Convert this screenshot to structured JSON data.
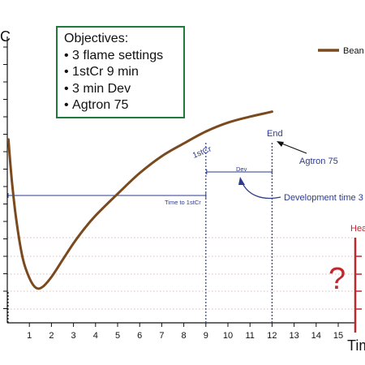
{
  "chart_data": {
    "type": "line",
    "title": "",
    "ylabel": "C",
    "xlabel": "Tim",
    "xlim": [
      0,
      16
    ],
    "x_ticks": [
      1,
      2,
      3,
      4,
      5,
      6,
      7,
      8,
      9,
      10,
      11,
      12,
      13,
      14,
      15
    ],
    "grid": "dotted horizontal",
    "series": [
      {
        "name": "Bean",
        "color": "#7a4a1e",
        "x": [
          0.05,
          0.2,
          0.4,
          0.7,
          1.0,
          1.3,
          1.6,
          2.0,
          2.5,
          3.0,
          3.5,
          4.0,
          5.0,
          6.0,
          7.0,
          8.0,
          9.0,
          10.0,
          11.0,
          12.0
        ],
        "y": [
          155,
          115,
          75,
          35,
          15,
          5,
          6,
          16,
          33,
          50,
          65,
          78,
          100,
          121,
          138,
          151,
          163,
          172,
          178,
          183
        ]
      }
    ],
    "legend": {
      "position": "top-right",
      "label": "Bean"
    },
    "markers": [
      {
        "x": 9,
        "label": "1stCr"
      },
      {
        "x": 12,
        "label": "End"
      }
    ],
    "spans": [
      {
        "from": 0,
        "to": 9,
        "label": "Time to 1stCr"
      },
      {
        "from": 9,
        "to": 12,
        "label": "Dev"
      }
    ],
    "annotations": [
      {
        "text": "Agtron 75",
        "target_x": 12
      },
      {
        "text": "Development time 3",
        "target_x": 10.5
      }
    ],
    "side_label": "Hea",
    "question_mark": "?",
    "colors": {
      "curve": "#7a4a1e",
      "annotation": "#2b3b8f",
      "heat": "#c1272d",
      "grid": "#e0a0a0",
      "objectives_border": "#1e7b3a"
    }
  },
  "objectives": {
    "title": "Objectives:",
    "items": [
      "3 flame settings",
      "1stCr 9 min",
      "3 min Dev",
      "Agtron 75"
    ]
  }
}
